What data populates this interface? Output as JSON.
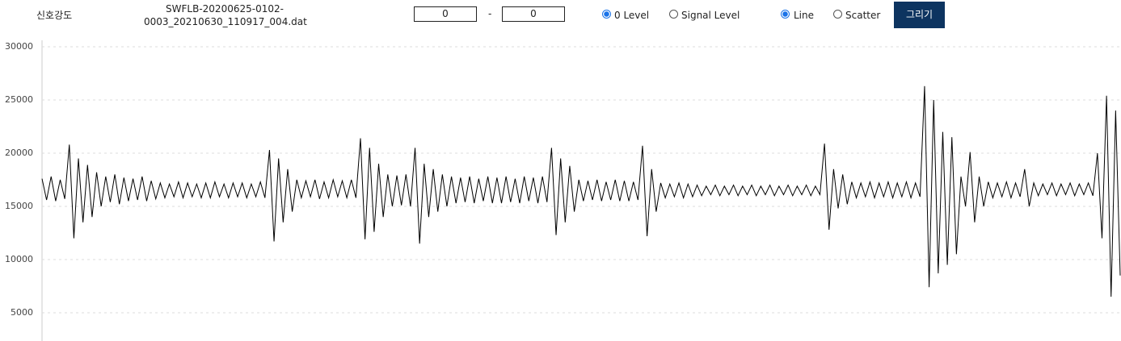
{
  "controls": {
    "label": "신호강도",
    "filename_lines": [
      "SWFLB-20200625-0102-",
      "0003_20210630_110917_004.dat"
    ],
    "range_start": "0",
    "range_separator": "-",
    "range_end": "0",
    "level_options": [
      {
        "label": "0 Level",
        "checked": true
      },
      {
        "label": "Signal Level",
        "checked": false
      }
    ],
    "plot_options": [
      {
        "label": "Line",
        "checked": true
      },
      {
        "label": "Scatter",
        "checked": false
      }
    ],
    "button": "그리기"
  },
  "chart_data": {
    "type": "line",
    "color": "#000000",
    "grid": true,
    "ylim": [
      2300,
      30000
    ],
    "yticks": [
      5000,
      10000,
      15000,
      20000,
      25000,
      30000
    ],
    "values": [
      17600,
      15600,
      17800,
      15500,
      17500,
      15700,
      20800,
      12000,
      19500,
      13500,
      18900,
      14000,
      18200,
      15000,
      17800,
      15400,
      18000,
      15200,
      17700,
      15500,
      17600,
      15600,
      17800,
      15500,
      17400,
      15700,
      17200,
      15800,
      17100,
      15900,
      17300,
      15800,
      17200,
      15900,
      17100,
      15800,
      17200,
      15800,
      17300,
      15900,
      17100,
      15800,
      17200,
      15900,
      17200,
      15800,
      17100,
      15900,
      17300,
      15800,
      20300,
      11700,
      19500,
      13500,
      18500,
      14500,
      17500,
      15800,
      17400,
      15900,
      17500,
      15700,
      17300,
      15800,
      17500,
      15900,
      17400,
      15800,
      17500,
      15800,
      21400,
      11900,
      20500,
      12600,
      19000,
      14000,
      18000,
      15000,
      17900,
      15100,
      18000,
      15000,
      20500,
      11500,
      19000,
      14000,
      18500,
      14500,
      18000,
      15000,
      17800,
      15300,
      17700,
      15400,
      17800,
      15300,
      17600,
      15500,
      17800,
      15300,
      17700,
      15300,
      17800,
      15400,
      17600,
      15300,
      17800,
      15500,
      17700,
      15300,
      17800,
      15400,
      20500,
      12300,
      19500,
      13500,
      18800,
      14500,
      17500,
      15500,
      17400,
      15600,
      17500,
      15500,
      17300,
      15600,
      17500,
      15500,
      17400,
      15500,
      17300,
      15600,
      20700,
      12200,
      18500,
      14500,
      17200,
      15800,
      17100,
      15900,
      17200,
      15800,
      17100,
      15900,
      17000,
      16000,
      16900,
      16100,
      17000,
      16000,
      16900,
      16100,
      17000,
      16000,
      16900,
      16100,
      17000,
      16000,
      16900,
      16100,
      17000,
      16000,
      16900,
      16100,
      17000,
      16000,
      16900,
      16100,
      17000,
      16000,
      16900,
      16100,
      20900,
      12800,
      18500,
      14800,
      18000,
      15200,
      17300,
      15800,
      17200,
      15900,
      17300,
      15800,
      17200,
      15900,
      17300,
      15800,
      17200,
      15900,
      17300,
      15800,
      17200,
      15900,
      26300,
      7400,
      25000,
      8700,
      22000,
      9500,
      21500,
      10500,
      17800,
      15000,
      20100,
      13500,
      17800,
      15000,
      17300,
      15800,
      17200,
      15900,
      17300,
      15800,
      17200,
      15900,
      18500,
      15000,
      17200,
      16000,
      17100,
      16100,
      17200,
      16000,
      17100,
      16100,
      17200,
      16000,
      17100,
      16100,
      17200,
      16000,
      20000,
      12000,
      25400,
      6500,
      24000,
      8500
    ]
  }
}
